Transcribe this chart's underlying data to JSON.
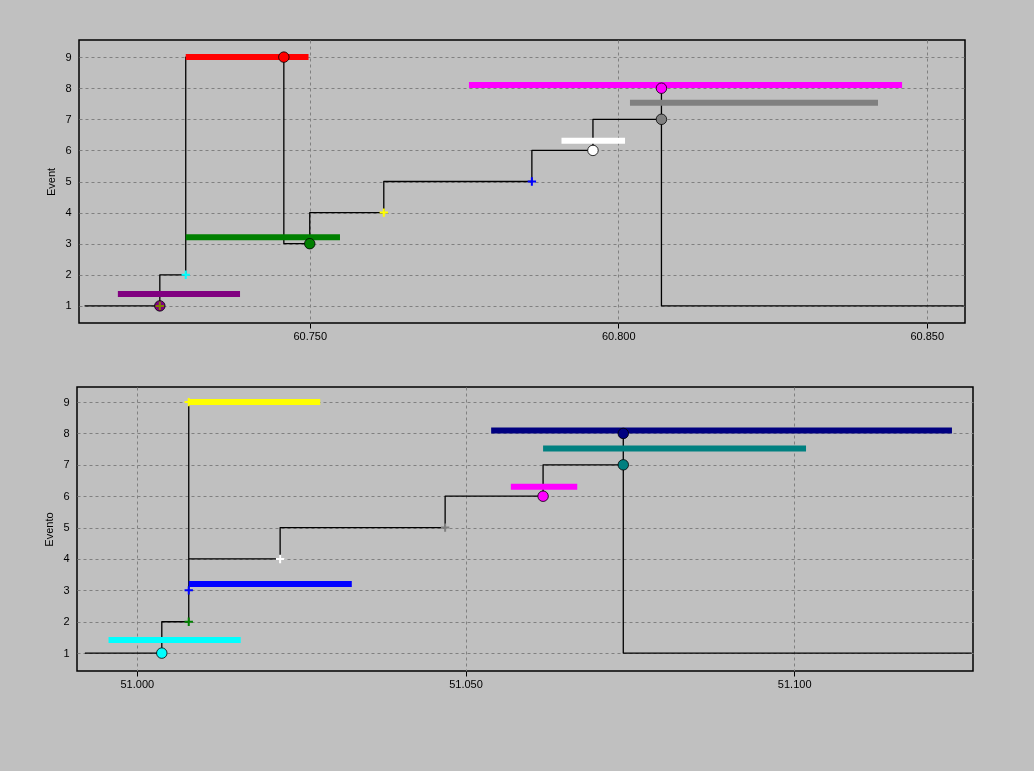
{
  "chart_data": [
    {
      "type": "line",
      "ylabel": "Event",
      "xlim": [
        60.7126,
        60.8562
      ],
      "ylim": [
        0.45,
        9.55
      ],
      "xticks": [
        {
          "value": 60.75,
          "label": "60.750"
        },
        {
          "value": 60.8,
          "label": "60.800"
        },
        {
          "value": 60.85,
          "label": "60.850"
        }
      ],
      "yticks": [
        1,
        2,
        3,
        4,
        5,
        6,
        7,
        8,
        9
      ],
      "grid": true,
      "series": [
        {
          "type": "step",
          "color": "#000000",
          "x": [
            60.7135,
            60.7257,
            60.7299,
            60.7458,
            60.75,
            60.762,
            60.786,
            60.7959,
            60.807,
            60.807,
            60.856
          ],
          "values": [
            1,
            2,
            9,
            3,
            4,
            5,
            6,
            7,
            8,
            1,
            1
          ]
        },
        {
          "color": "#800080",
          "x": [
            60.7189,
            60.7387
          ],
          "values": [
            1.38,
            1.38
          ]
        },
        {
          "color": "#ff0000",
          "x": [
            60.7299,
            60.7498
          ],
          "values": [
            9,
            9
          ]
        },
        {
          "color": "#008000",
          "x": [
            60.7299,
            60.7549
          ],
          "values": [
            3.21,
            3.21
          ]
        },
        {
          "color": "#ff00ff",
          "x": [
            60.7758,
            60.846
          ],
          "values": [
            8.1,
            8.1
          ]
        },
        {
          "color": "#808080",
          "x": [
            60.8019,
            60.8421
          ],
          "values": [
            7.53,
            7.53
          ]
        },
        {
          "color": "#ffffff",
          "x": [
            60.7908,
            60.8011
          ],
          "values": [
            6.31,
            6.31
          ]
        },
        {
          "type": "scatter",
          "marker": "circle",
          "color": "#800080",
          "x": [
            60.7257
          ],
          "values": [
            1
          ]
        },
        {
          "type": "scatter",
          "marker": "cross",
          "color": "#808000",
          "x": [
            60.7257
          ],
          "values": [
            1
          ]
        },
        {
          "type": "scatter",
          "marker": "cross",
          "color": "#00ffff",
          "x": [
            60.7299
          ],
          "values": [
            2
          ]
        },
        {
          "type": "scatter",
          "marker": "circle",
          "color": "#ff0000",
          "x": [
            60.7458
          ],
          "values": [
            9
          ]
        },
        {
          "type": "scatter",
          "marker": "circle",
          "color": "#008000",
          "x": [
            60.75
          ],
          "values": [
            3
          ]
        },
        {
          "type": "scatter",
          "marker": "cross",
          "color": "#ffff00",
          "x": [
            60.762
          ],
          "values": [
            4
          ]
        },
        {
          "type": "scatter",
          "marker": "cross",
          "color": "#0000ff",
          "x": [
            60.786
          ],
          "values": [
            5
          ]
        },
        {
          "type": "scatter",
          "marker": "circle",
          "color": "#ffffff",
          "x": [
            60.7959
          ],
          "values": [
            6
          ]
        },
        {
          "type": "scatter",
          "marker": "circle",
          "color": "#808080",
          "x": [
            60.807
          ],
          "values": [
            7
          ]
        },
        {
          "type": "scatter",
          "marker": "circle",
          "color": "#ff00ff",
          "x": [
            60.807
          ],
          "values": [
            8
          ]
        }
      ]
    },
    {
      "type": "line",
      "ylabel": "Evento",
      "xlim": [
        50.9909,
        51.1272
      ],
      "ylim": [
        0.43,
        9.48
      ],
      "xticks": [
        {
          "value": 51,
          "label": "51.000"
        },
        {
          "value": 51.05,
          "label": "51.050"
        },
        {
          "value": 51.1,
          "label": "51.100"
        }
      ],
      "yticks": [
        1,
        2,
        3,
        4,
        5,
        6,
        7,
        8,
        9
      ],
      "grid": true,
      "series": [
        {
          "type": "step",
          "color": "#000000",
          "x": [
            50.9921,
            51.0038,
            51.0079,
            51.0079,
            51.0079,
            51.0218,
            51.0469,
            51.0618,
            51.074,
            51.074,
            51.127
          ],
          "values": [
            1,
            2,
            3,
            9,
            4,
            5,
            6,
            7,
            8,
            1,
            1
          ]
        },
        {
          "color": "#00ffff",
          "x": [
            50.9957,
            51.0158
          ],
          "values": [
            1.42,
            1.42
          ]
        },
        {
          "color": "#ffff00",
          "x": [
            51.0079,
            51.0279
          ],
          "values": [
            9,
            9
          ]
        },
        {
          "color": "#0000ff",
          "x": [
            51.0079,
            51.0327
          ],
          "values": [
            3.2,
            3.2
          ]
        },
        {
          "color": "#000080",
          "x": [
            51.0539,
            51.124
          ],
          "values": [
            8.09,
            8.09
          ]
        },
        {
          "color": "#008080",
          "x": [
            51.0618,
            51.1018
          ],
          "values": [
            7.52,
            7.52
          ]
        },
        {
          "color": "#ff00ff",
          "x": [
            51.0569,
            51.067
          ],
          "values": [
            6.3,
            6.3
          ]
        },
        {
          "type": "scatter",
          "marker": "circle",
          "color": "#00ffff",
          "x": [
            51.0038
          ],
          "values": [
            1
          ]
        },
        {
          "type": "scatter",
          "marker": "cross",
          "color": "#008000",
          "x": [
            51.0079
          ],
          "values": [
            2
          ]
        },
        {
          "type": "scatter",
          "marker": "cross",
          "color": "#0000ff",
          "x": [
            51.0079
          ],
          "values": [
            3
          ]
        },
        {
          "type": "scatter",
          "marker": "cross",
          "color": "#ffff00",
          "x": [
            51.0079
          ],
          "values": [
            9
          ]
        },
        {
          "type": "scatter",
          "marker": "cross",
          "color": "#ffffff",
          "x": [
            51.0218
          ],
          "values": [
            4
          ]
        },
        {
          "type": "scatter",
          "marker": "cross",
          "color": "#808080",
          "x": [
            51.0469
          ],
          "values": [
            5
          ]
        },
        {
          "type": "scatter",
          "marker": "circle",
          "color": "#ff00ff",
          "x": [
            51.0618
          ],
          "values": [
            6
          ]
        },
        {
          "type": "scatter",
          "marker": "circle",
          "color": "#008080",
          "x": [
            51.074
          ],
          "values": [
            7
          ]
        },
        {
          "type": "scatter",
          "marker": "circle",
          "color": "#000080",
          "x": [
            51.074
          ],
          "values": [
            8
          ]
        }
      ]
    }
  ]
}
